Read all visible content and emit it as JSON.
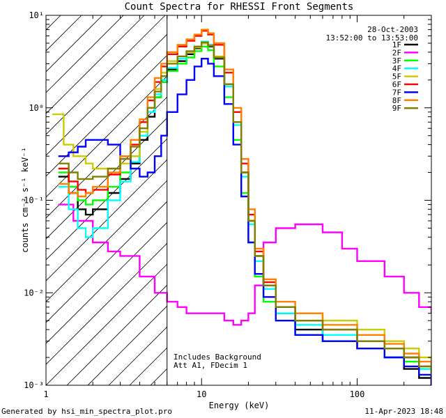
{
  "chart_data": {
    "type": "line",
    "title": "Count Spectra for RHESSI Front Segments",
    "xlabel": "Energy (keV)",
    "ylabel": "counts cm⁻² s⁻¹ keV⁻¹",
    "xscale": "log",
    "yscale": "log",
    "xlim": [
      1,
      300
    ],
    "ylim": [
      0.001,
      10
    ],
    "x_tick_labels": [
      "1",
      "10",
      "100"
    ],
    "x_tick_values": [
      1,
      10,
      100
    ],
    "y_tick_labels": [
      "10⁻³",
      "10⁻²",
      "10⁻¹",
      "10⁰",
      "10¹"
    ],
    "y_tick_values": [
      0.001,
      0.01,
      0.1,
      1,
      10
    ],
    "date": "28-Oct-2003",
    "time_range": "13:52:00 to 13:53:00",
    "attenuator_cutoff_keV": 6,
    "annotations": [
      "Includes Background",
      "Att A1, FDecim 1"
    ],
    "legend_position": "top-right",
    "series": [
      {
        "name": "1F",
        "color": "#000000",
        "x": [
          1.2,
          1.4,
          1.6,
          1.8,
          2.0,
          2.5,
          3.0,
          3.5,
          4.0,
          4.5,
          5.0,
          5.5,
          6.0,
          7.0,
          8.0,
          9.0,
          10.0,
          11.0,
          12.0,
          14.0,
          16.0,
          18.0,
          20.0,
          22.0,
          25.0,
          30.0,
          40.0,
          60.0,
          100.0,
          150.0,
          200.0,
          250.0,
          300.0
        ],
        "y": [
          0.18,
          0.12,
          0.08,
          0.07,
          0.08,
          0.12,
          0.17,
          0.25,
          0.45,
          0.8,
          1.3,
          1.9,
          2.6,
          3.2,
          3.8,
          4.4,
          5.0,
          4.6,
          3.4,
          1.8,
          0.7,
          0.2,
          0.06,
          0.025,
          0.012,
          0.006,
          0.004,
          0.003,
          0.0025,
          0.002,
          0.0015,
          0.0012,
          0.001
        ]
      },
      {
        "name": "2F",
        "color": "#ff00ff",
        "x": [
          1.2,
          1.5,
          2.0,
          2.5,
          3.0,
          4.0,
          5.0,
          6.0,
          7.0,
          8.0,
          10.0,
          12.0,
          14.0,
          16.0,
          18.0,
          20.0,
          22.0,
          25.0,
          30.0,
          40.0,
          60.0,
          80.0,
          100.0,
          150.0,
          200.0,
          250.0,
          300.0
        ],
        "y": [
          0.09,
          0.06,
          0.035,
          0.028,
          0.025,
          0.015,
          0.01,
          0.008,
          0.007,
          0.006,
          0.006,
          0.006,
          0.005,
          0.0045,
          0.005,
          0.006,
          0.012,
          0.035,
          0.05,
          0.055,
          0.045,
          0.03,
          0.022,
          0.015,
          0.01,
          0.007,
          0.006
        ]
      },
      {
        "name": "3F",
        "color": "#00ff00",
        "x": [
          1.2,
          1.4,
          1.6,
          1.8,
          2.0,
          2.5,
          3.0,
          3.5,
          4.0,
          4.5,
          5.0,
          5.5,
          6.0,
          7.0,
          8.0,
          9.0,
          10.0,
          11.0,
          12.0,
          14.0,
          16.0,
          18.0,
          20.0,
          22.0,
          25.0,
          30.0,
          40.0,
          60.0,
          100.0,
          150.0,
          200.0,
          250.0,
          300.0
        ],
        "y": [
          0.2,
          0.14,
          0.1,
          0.09,
          0.1,
          0.14,
          0.2,
          0.3,
          0.5,
          0.9,
          1.3,
          1.9,
          2.5,
          3.0,
          3.5,
          4.1,
          4.6,
          4.2,
          2.8,
          1.3,
          0.45,
          0.12,
          0.035,
          0.015,
          0.008,
          0.005,
          0.0035,
          0.003,
          0.0025,
          0.002,
          0.0018,
          0.0015,
          0.0012
        ]
      },
      {
        "name": "4F",
        "color": "#00ffff",
        "x": [
          1.2,
          1.4,
          1.6,
          1.8,
          2.0,
          2.5,
          3.0,
          3.5,
          4.0,
          4.5,
          5.0,
          5.5,
          6.0,
          7.0,
          8.0,
          9.0,
          10.0,
          11.0,
          12.0,
          14.0,
          16.0,
          18.0,
          20.0,
          22.0,
          25.0,
          30.0,
          40.0,
          60.0,
          100.0,
          150.0,
          200.0,
          250.0,
          300.0
        ],
        "y": [
          0.14,
          0.08,
          0.05,
          0.04,
          0.05,
          0.1,
          0.16,
          0.26,
          0.5,
          0.9,
          1.4,
          2.0,
          2.7,
          3.4,
          4.0,
          4.6,
          5.2,
          4.8,
          3.5,
          1.7,
          0.65,
          0.18,
          0.055,
          0.022,
          0.011,
          0.006,
          0.0045,
          0.0035,
          0.003,
          0.0025,
          0.002,
          0.0015,
          0.0012
        ]
      },
      {
        "name": "5F",
        "color": "#cccc00",
        "x": [
          1.1,
          1.3,
          1.5,
          1.8,
          2.0,
          2.5,
          3.0,
          3.5,
          4.0,
          4.5,
          5.0,
          5.5,
          6.0,
          7.0,
          8.0,
          9.0,
          10.0,
          11.0,
          12.0,
          14.0,
          16.0,
          18.0,
          20.0,
          22.0,
          25.0,
          30.0,
          40.0,
          60.0,
          100.0,
          150.0,
          200.0,
          250.0,
          300.0
        ],
        "y": [
          0.85,
          0.4,
          0.3,
          0.25,
          0.22,
          0.22,
          0.25,
          0.3,
          0.55,
          1.0,
          1.6,
          2.4,
          3.2,
          3.6,
          4.0,
          4.5,
          5.0,
          4.7,
          3.6,
          1.8,
          0.7,
          0.2,
          0.06,
          0.025,
          0.014,
          0.007,
          0.006,
          0.005,
          0.004,
          0.003,
          0.0025,
          0.002,
          0.0015
        ]
      },
      {
        "name": "6F",
        "color": "#ff0000",
        "x": [
          1.2,
          1.4,
          1.6,
          1.8,
          2.0,
          2.5,
          3.0,
          3.5,
          4.0,
          4.5,
          5.0,
          5.5,
          6.0,
          7.0,
          8.0,
          9.0,
          10.0,
          11.0,
          12.0,
          14.0,
          16.0,
          18.0,
          20.0,
          22.0,
          25.0,
          30.0,
          40.0,
          60.0,
          100.0,
          150.0,
          200.0,
          250.0,
          300.0
        ],
        "y": [
          0.22,
          0.16,
          0.13,
          0.12,
          0.13,
          0.19,
          0.28,
          0.4,
          0.7,
          1.2,
          1.9,
          2.8,
          3.8,
          4.6,
          5.3,
          6.0,
          6.8,
          6.2,
          4.8,
          2.4,
          0.9,
          0.25,
          0.07,
          0.028,
          0.013,
          0.007,
          0.005,
          0.004,
          0.003,
          0.0025,
          0.002,
          0.0016,
          0.0013
        ]
      },
      {
        "name": "7F",
        "color": "#0000ff",
        "x": [
          1.2,
          1.4,
          1.6,
          1.8,
          2.0,
          2.5,
          3.0,
          3.5,
          4.0,
          4.5,
          5.0,
          5.5,
          6.0,
          7.0,
          8.0,
          9.0,
          10.0,
          11.0,
          12.0,
          14.0,
          16.0,
          18.0,
          20.0,
          22.0,
          25.0,
          30.0,
          40.0,
          60.0,
          100.0,
          150.0,
          200.0,
          250.0,
          300.0
        ],
        "y": [
          0.3,
          0.33,
          0.38,
          0.45,
          0.45,
          0.4,
          0.3,
          0.22,
          0.18,
          0.2,
          0.3,
          0.5,
          0.9,
          1.4,
          2.0,
          2.8,
          3.4,
          3.0,
          2.2,
          1.1,
          0.4,
          0.11,
          0.035,
          0.016,
          0.009,
          0.005,
          0.0035,
          0.003,
          0.0025,
          0.002,
          0.0016,
          0.0013,
          0.001
        ]
      },
      {
        "name": "8F",
        "color": "#ff8000",
        "x": [
          1.2,
          1.4,
          1.6,
          1.8,
          2.0,
          2.5,
          3.0,
          3.5,
          4.0,
          4.5,
          5.0,
          5.5,
          6.0,
          7.0,
          8.0,
          9.0,
          10.0,
          11.0,
          12.0,
          14.0,
          16.0,
          18.0,
          20.0,
          22.0,
          25.0,
          30.0,
          40.0,
          60.0,
          100.0,
          150.0,
          200.0,
          250.0,
          300.0
        ],
        "y": [
          0.15,
          0.12,
          0.11,
          0.12,
          0.14,
          0.2,
          0.3,
          0.45,
          0.75,
          1.3,
          2.1,
          3.0,
          4.0,
          4.8,
          5.5,
          6.2,
          7.0,
          6.4,
          5.0,
          2.6,
          1.0,
          0.28,
          0.08,
          0.03,
          0.014,
          0.008,
          0.006,
          0.0045,
          0.0035,
          0.0028,
          0.0022,
          0.0018,
          0.0014
        ]
      },
      {
        "name": "9F",
        "color": "#808000",
        "x": [
          1.2,
          1.4,
          1.6,
          1.8,
          2.0,
          2.5,
          3.0,
          3.5,
          4.0,
          4.5,
          5.0,
          5.5,
          6.0,
          7.0,
          8.0,
          9.0,
          10.0,
          11.0,
          12.0,
          14.0,
          16.0,
          18.0,
          20.0,
          22.0,
          25.0,
          30.0,
          40.0,
          60.0,
          100.0,
          150.0,
          200.0,
          250.0,
          300.0
        ],
        "y": [
          0.25,
          0.2,
          0.17,
          0.17,
          0.18,
          0.22,
          0.28,
          0.38,
          0.6,
          1.0,
          1.5,
          2.2,
          3.0,
          3.6,
          4.1,
          4.6,
          5.1,
          4.7,
          3.5,
          1.8,
          0.7,
          0.2,
          0.06,
          0.025,
          0.012,
          0.007,
          0.005,
          0.004,
          0.003,
          0.0025,
          0.002,
          0.0016,
          0.0013
        ]
      }
    ]
  },
  "footer": {
    "left": "Generated by hsi_min_spectra_plot.pro",
    "right": "11-Apr-2023 18:48"
  }
}
